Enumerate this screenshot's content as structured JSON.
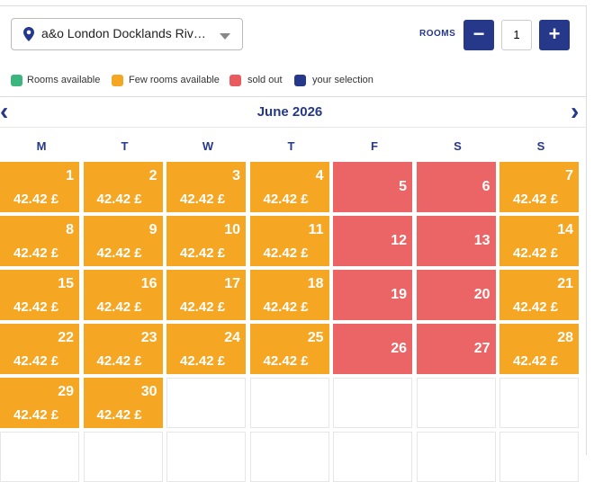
{
  "header": {
    "hotel": "a&o London Docklands Riv…",
    "rooms_label": "ROOMS",
    "rooms_value": "1",
    "minus": "−",
    "plus": "+"
  },
  "legend": [
    {
      "label": "Rooms available",
      "color": "#3db57f"
    },
    {
      "label": "Few rooms available",
      "color": "#f5a623"
    },
    {
      "label": "sold out",
      "color": "#e95b5e"
    },
    {
      "label": "your selection",
      "color": "#26388a"
    }
  ],
  "calendar": {
    "month": "June 2026",
    "prev": "‹",
    "next": "›",
    "weekdays": [
      "M",
      "T",
      "W",
      "T",
      "F",
      "S",
      "S"
    ],
    "status_colors": {
      "few": "#f5a623",
      "sold": "#ec6566"
    },
    "days": [
      {
        "day": 1,
        "price": "42.42 £",
        "status": "few"
      },
      {
        "day": 2,
        "price": "42.42 £",
        "status": "few"
      },
      {
        "day": 3,
        "price": "42.42 £",
        "status": "few"
      },
      {
        "day": 4,
        "price": "42.42 £",
        "status": "few"
      },
      {
        "day": 5,
        "status": "sold"
      },
      {
        "day": 6,
        "status": "sold"
      },
      {
        "day": 7,
        "price": "42.42 £",
        "status": "few"
      },
      {
        "day": 8,
        "price": "42.42 £",
        "status": "few"
      },
      {
        "day": 9,
        "price": "42.42 £",
        "status": "few"
      },
      {
        "day": 10,
        "price": "42.42 £",
        "status": "few"
      },
      {
        "day": 11,
        "price": "42.42 £",
        "status": "few"
      },
      {
        "day": 12,
        "status": "sold"
      },
      {
        "day": 13,
        "status": "sold"
      },
      {
        "day": 14,
        "price": "42.42 £",
        "status": "few"
      },
      {
        "day": 15,
        "price": "42.42 £",
        "status": "few"
      },
      {
        "day": 16,
        "price": "42.42 £",
        "status": "few"
      },
      {
        "day": 17,
        "price": "42.42 £",
        "status": "few"
      },
      {
        "day": 18,
        "price": "42.42 £",
        "status": "few"
      },
      {
        "day": 19,
        "status": "sold"
      },
      {
        "day": 20,
        "status": "sold"
      },
      {
        "day": 21,
        "price": "42.42 £",
        "status": "few"
      },
      {
        "day": 22,
        "price": "42.42 £",
        "status": "few"
      },
      {
        "day": 23,
        "price": "42.42 £",
        "status": "few"
      },
      {
        "day": 24,
        "price": "42.42 £",
        "status": "few"
      },
      {
        "day": 25,
        "price": "42.42 £",
        "status": "few"
      },
      {
        "day": 26,
        "status": "sold"
      },
      {
        "day": 27,
        "status": "sold"
      },
      {
        "day": 28,
        "price": "42.42 £",
        "status": "few"
      },
      {
        "day": 29,
        "price": "42.42 £",
        "status": "few"
      },
      {
        "day": 30,
        "price": "42.42 £",
        "status": "few"
      }
    ]
  }
}
